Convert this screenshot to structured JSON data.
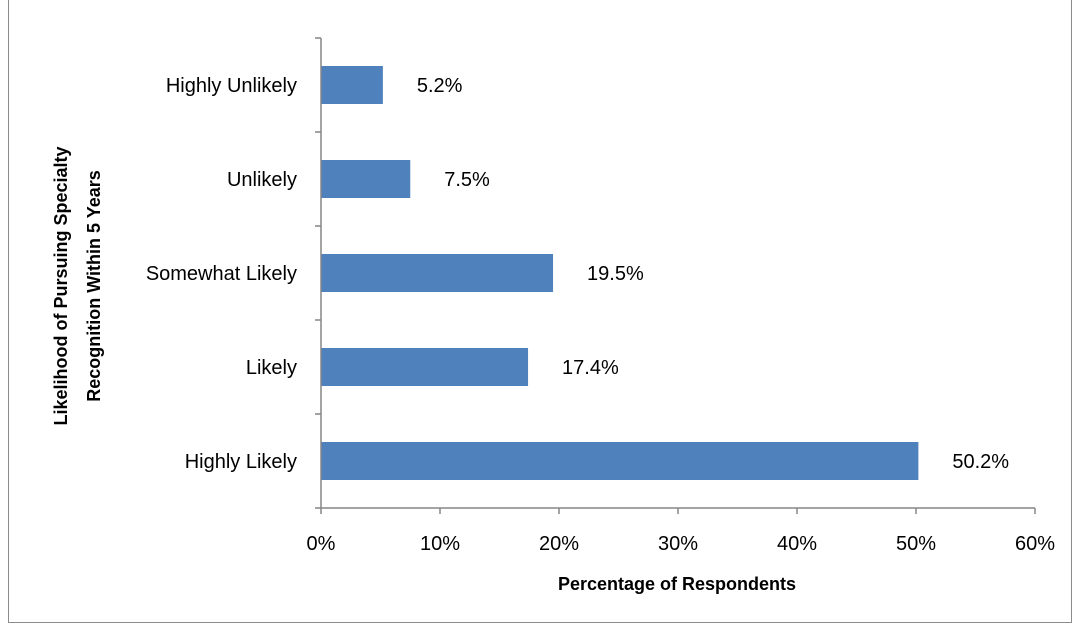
{
  "chart_data": {
    "type": "bar",
    "orientation": "horizontal",
    "title": "",
    "categories": [
      "Highly Unlikely",
      "Unlikely",
      "Somewhat Likely",
      "Likely",
      "Highly Likely"
    ],
    "values": [
      5.2,
      7.5,
      19.5,
      17.4,
      50.2
    ],
    "data_labels": [
      "5.2%",
      "7.5%",
      "19.5%",
      "17.4%",
      "50.2%"
    ],
    "xlabel": "Percentage of Respondents",
    "ylabel_lines": [
      "Likelihood of Pursuing Specialty",
      "Recognition Within 5 Years"
    ],
    "xlim": [
      0,
      60
    ],
    "x_ticks": [
      0,
      10,
      20,
      30,
      40,
      50,
      60
    ],
    "x_tick_labels": [
      "0%",
      "10%",
      "20%",
      "30%",
      "40%",
      "50%",
      "60%"
    ],
    "grid": false,
    "legend": "none",
    "bar_color": "#4f81bd",
    "axis_color": "#868686"
  }
}
